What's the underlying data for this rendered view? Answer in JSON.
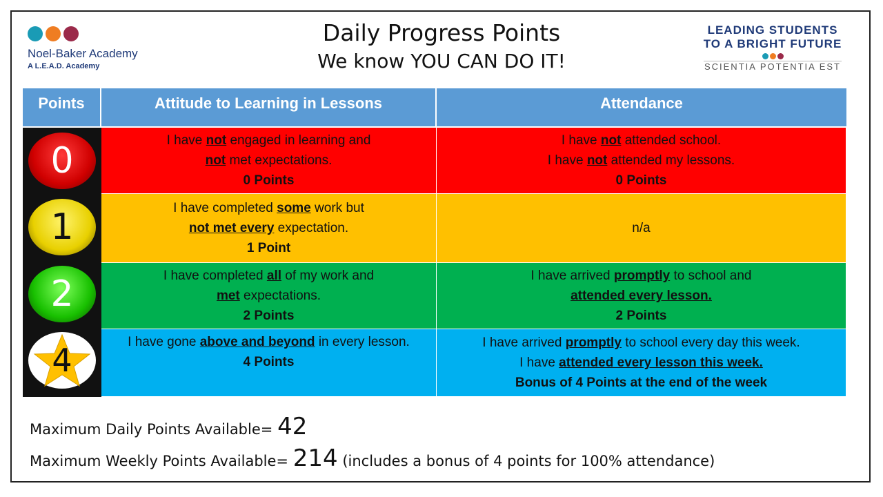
{
  "header": {
    "title": "Daily Progress Points",
    "subtitle": "We know YOU CAN DO IT!"
  },
  "logo_left": {
    "name": "Noel-Baker Academy",
    "sub": "A L.E.A.D. Academy",
    "dot_colors": [
      "#1a9bb5",
      "#ef7d22",
      "#9b2a4a"
    ]
  },
  "logo_right": {
    "line1": "LEADING STUDENTS",
    "line2": "TO A BRIGHT FUTURE",
    "motto": "SCIENTIA POTENTIA EST"
  },
  "table": {
    "headers": [
      "Points",
      "Attitude to Learning in Lessons",
      "Attendance"
    ],
    "lights": [
      "0",
      "1",
      "2",
      "4"
    ],
    "rows": {
      "r0": {
        "att_1a": "I have ",
        "att_1b": "not",
        "att_1c": " engaged in learning and",
        "att_2a": "not",
        "att_2b": " met expectations.",
        "att_3": "0 Points",
        "atd_1a": "I have ",
        "atd_1b": "not",
        "atd_1c": " attended school.",
        "atd_2a": "I have ",
        "atd_2b": "not",
        "atd_2c": " attended my lessons.",
        "atd_3": "0 Points"
      },
      "r1": {
        "att_1a": "I have completed ",
        "att_1b": "some",
        "att_1c": " work but",
        "att_2a": "not met every",
        "att_2b": " expectation.",
        "att_3": "1 Point",
        "atd": "n/a"
      },
      "r2": {
        "att_1a": "I have completed ",
        "att_1b": "all",
        "att_1c": " of my work and",
        "att_2a": "met",
        "att_2b": " expectations.",
        "att_3": "2 Points",
        "atd_1a": "I have arrived ",
        "atd_1b": "promptly",
        "atd_1c": " to school and",
        "atd_2": "attended every lesson.",
        "atd_3": "2 Points"
      },
      "r4": {
        "att_1a": "I have gone ",
        "att_1b": "above and beyond",
        "att_1c": " in every lesson.",
        "att_2": "4 Points",
        "atd_1a": "I have arrived ",
        "atd_1b": "promptly",
        "atd_1c": " to school every day this week.",
        "atd_2a": "I have ",
        "atd_2b": "attended every lesson this week.",
        "atd_3": "Bonus of 4 Points at the end of the week"
      }
    },
    "row_colors": [
      "#ff0000",
      "#ffc000",
      "#00b050",
      "#00b0f0"
    ]
  },
  "footer": {
    "daily_label": "Maximum Daily Points Available=",
    "daily_value": "42",
    "weekly_label": "Maximum Weekly Points Available=",
    "weekly_value": "214",
    "weekly_note": "(includes a bonus of 4 points for 100% attendance)"
  }
}
